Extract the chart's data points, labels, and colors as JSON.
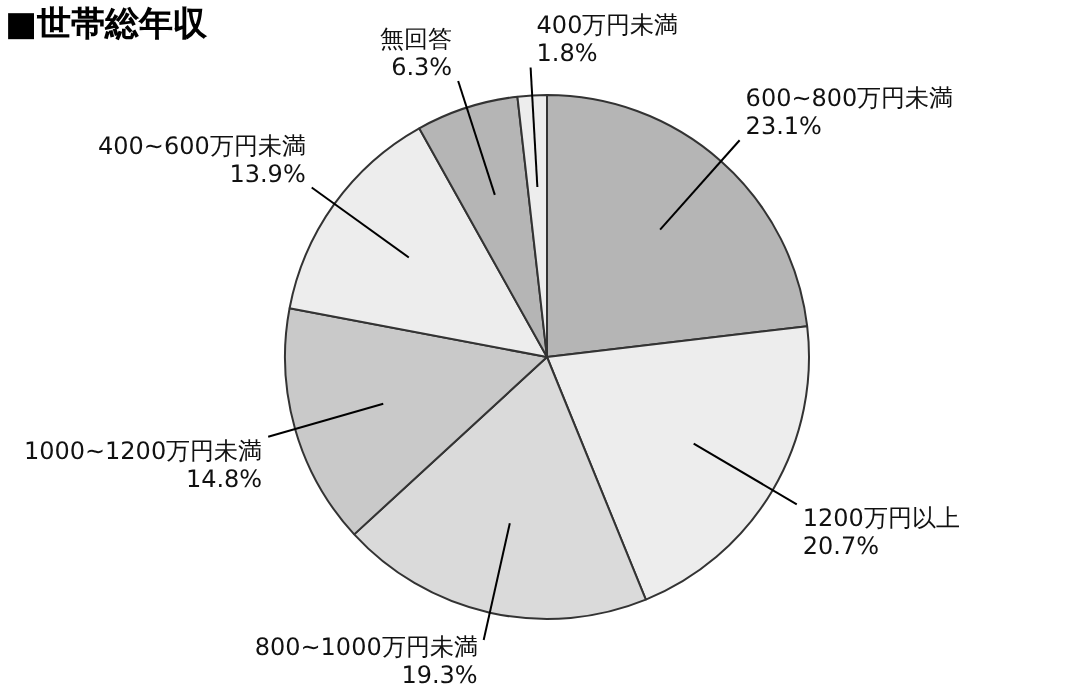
{
  "chart_data": {
    "type": "pie",
    "title": "■世帯総年収",
    "categories": [
      "600~800万円未満",
      "1200万円以上",
      "800~1000万円未満",
      "1000~1200万円未満",
      "400~600万円未満",
      "無回答",
      "400万円未満"
    ],
    "values": [
      23.1,
      20.7,
      19.3,
      14.8,
      13.9,
      6.3,
      1.8
    ],
    "value_labels": [
      "23.1%",
      "20.7%",
      "19.3%",
      "14.8%",
      "13.9%",
      "6.3%",
      "1.8%"
    ],
    "colors": [
      "#b5b5b5",
      "#ededed",
      "#dadada",
      "#c9c9c9",
      "#ededed",
      "#b5b5b5",
      "#ededed"
    ]
  }
}
